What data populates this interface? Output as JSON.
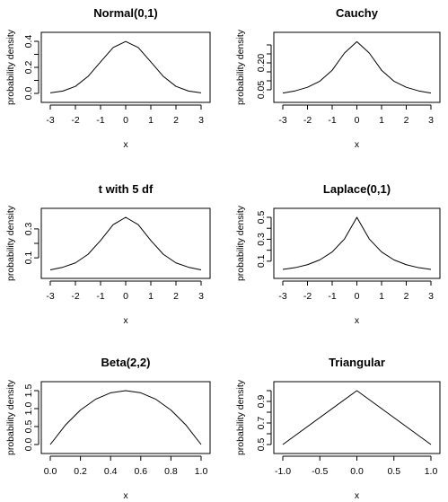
{
  "chart_data": [
    {
      "type": "line",
      "title": "Normal(0,1)",
      "xlabel": "x",
      "ylabel": "probability density",
      "xlim": [
        -3,
        3
      ],
      "ylim": [
        0,
        0.4
      ],
      "x_ticks": [
        -3,
        -2,
        -1,
        0,
        1,
        2,
        3
      ],
      "x_tick_labels": [
        "-3",
        "-2",
        "-1",
        "0",
        "1",
        "2",
        "3"
      ],
      "y_ticks": [
        0.0,
        0.1,
        0.2,
        0.3,
        0.4
      ],
      "y_tick_labels": [
        "0.0",
        "",
        "0.2",
        "",
        "0.4"
      ],
      "series": [
        {
          "x": [
            -3,
            -2.5,
            -2,
            -1.5,
            -1,
            -0.5,
            0,
            0.5,
            1,
            1.5,
            2,
            2.5,
            3
          ],
          "y": [
            0.004,
            0.018,
            0.054,
            0.13,
            0.242,
            0.352,
            0.399,
            0.352,
            0.242,
            0.13,
            0.054,
            0.018,
            0.004
          ]
        }
      ]
    },
    {
      "type": "line",
      "title": "Cauchy",
      "xlabel": "x",
      "ylabel": "probability density",
      "xlim": [
        -3,
        3
      ],
      "ylim": [
        0.03,
        0.32
      ],
      "x_ticks": [
        -3,
        -2,
        -1,
        0,
        1,
        2,
        3
      ],
      "x_tick_labels": [
        "-3",
        "-2",
        "-1",
        "0",
        "1",
        "2",
        "3"
      ],
      "y_ticks": [
        0.05,
        0.1,
        0.15,
        0.2,
        0.25,
        0.3
      ],
      "y_tick_labels": [
        "0.05",
        "",
        "",
        "0.20",
        "",
        ""
      ],
      "series": [
        {
          "x": [
            -3,
            -2.5,
            -2,
            -1.5,
            -1,
            -0.5,
            0,
            0.5,
            1,
            1.5,
            2,
            2.5,
            3
          ],
          "y": [
            0.032,
            0.044,
            0.064,
            0.098,
            0.159,
            0.255,
            0.318,
            0.255,
            0.159,
            0.098,
            0.064,
            0.044,
            0.032
          ]
        }
      ]
    },
    {
      "type": "line",
      "title": "t with 5 df",
      "xlabel": "x",
      "ylabel": "probability density",
      "xlim": [
        -3,
        3
      ],
      "ylim": [
        0.02,
        0.38
      ],
      "x_ticks": [
        -3,
        -2,
        -1,
        0,
        1,
        2,
        3
      ],
      "x_tick_labels": [
        "-3",
        "-2",
        "-1",
        "0",
        "1",
        "2",
        "3"
      ],
      "y_ticks": [
        0.1,
        0.2,
        0.3
      ],
      "y_tick_labels": [
        "0.1",
        "",
        "0.3"
      ],
      "series": [
        {
          "x": [
            -3,
            -2.5,
            -2,
            -1.5,
            -1,
            -0.5,
            0,
            0.5,
            1,
            1.5,
            2,
            2.5,
            3
          ],
          "y": [
            0.017,
            0.035,
            0.065,
            0.124,
            0.22,
            0.329,
            0.38,
            0.329,
            0.22,
            0.124,
            0.065,
            0.035,
            0.017
          ]
        }
      ]
    },
    {
      "type": "line",
      "title": "Laplace(0,1)",
      "xlabel": "x",
      "ylabel": "probability density",
      "xlim": [
        -3,
        3
      ],
      "ylim": [
        0.025,
        0.5
      ],
      "x_ticks": [
        -3,
        -2,
        -1,
        0,
        1,
        2,
        3
      ],
      "x_tick_labels": [
        "-3",
        "-2",
        "-1",
        "0",
        "1",
        "2",
        "3"
      ],
      "y_ticks": [
        0.1,
        0.2,
        0.3,
        0.4,
        0.5
      ],
      "y_tick_labels": [
        "0.1",
        "",
        "0.3",
        "",
        "0.5"
      ],
      "series": [
        {
          "x": [
            -3,
            -2.5,
            -2,
            -1.5,
            -1,
            -0.5,
            0,
            0.5,
            1,
            1.5,
            2,
            2.5,
            3
          ],
          "y": [
            0.025,
            0.041,
            0.068,
            0.112,
            0.184,
            0.303,
            0.5,
            0.303,
            0.184,
            0.112,
            0.068,
            0.041,
            0.025
          ]
        }
      ]
    },
    {
      "type": "line",
      "title": "Beta(2,2)",
      "xlabel": "x",
      "ylabel": "probability density",
      "xlim": [
        0,
        1
      ],
      "ylim": [
        0,
        1.5
      ],
      "x_ticks": [
        0.0,
        0.2,
        0.4,
        0.6,
        0.8,
        1.0
      ],
      "x_tick_labels": [
        "0.0",
        "0.2",
        "0.4",
        "0.6",
        "0.8",
        "1.0"
      ],
      "y_ticks": [
        0.0,
        0.5,
        1.0,
        1.5
      ],
      "y_tick_labels": [
        "0.0",
        "0.5",
        "1.0",
        "1.5"
      ],
      "series": [
        {
          "x": [
            0,
            0.1,
            0.2,
            0.3,
            0.4,
            0.5,
            0.6,
            0.7,
            0.8,
            0.9,
            1
          ],
          "y": [
            0,
            0.54,
            0.96,
            1.26,
            1.44,
            1.5,
            1.44,
            1.26,
            0.96,
            0.54,
            0
          ]
        }
      ]
    },
    {
      "type": "line",
      "title": "Triangular",
      "xlabel": "x",
      "ylabel": "probability density",
      "xlim": [
        -1,
        1
      ],
      "ylim": [
        0.5,
        1.0
      ],
      "x_ticks": [
        -1.0,
        -0.5,
        0.0,
        0.5,
        1.0
      ],
      "x_tick_labels": [
        "-1.0",
        "-0.5",
        "0.0",
        "0.5",
        "1.0"
      ],
      "y_ticks": [
        0.5,
        0.6,
        0.7,
        0.8,
        0.9,
        1.0
      ],
      "y_tick_labels": [
        "0.5",
        "",
        "0.7",
        "",
        "0.9",
        ""
      ],
      "series": [
        {
          "x": [
            -1,
            0,
            1
          ],
          "y": [
            0.5,
            1.0,
            0.5
          ]
        }
      ]
    }
  ]
}
